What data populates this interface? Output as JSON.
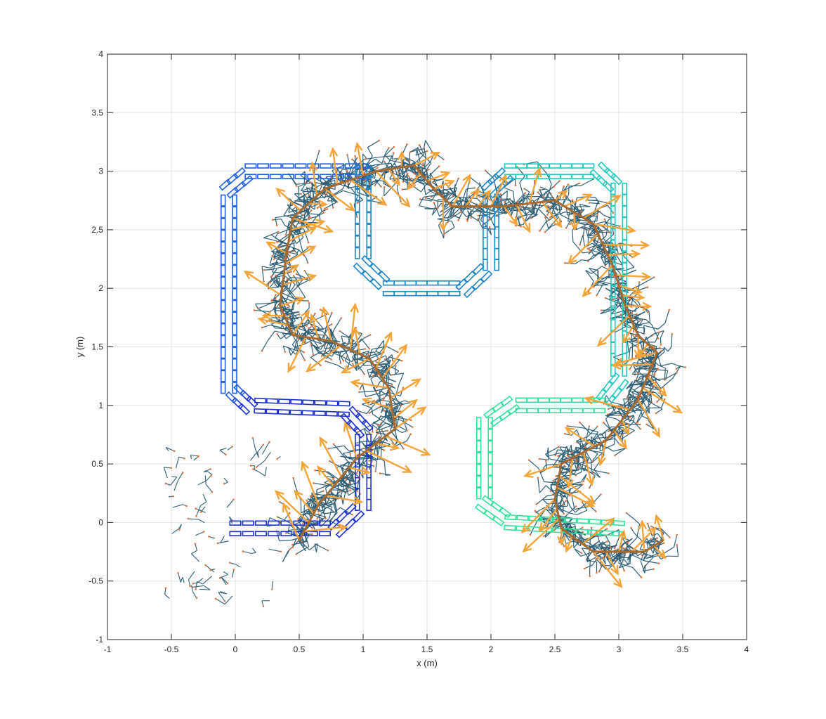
{
  "chart_data": {
    "type": "line",
    "xlabel": "x (m)",
    "ylabel": "y (m)",
    "xlim": [
      -1,
      4
    ],
    "ylim": [
      -1,
      4
    ],
    "xticks": [
      "-1",
      "-0.5",
      "0",
      "0.5",
      "1",
      "1.5",
      "2",
      "2.5",
      "3",
      "3.5",
      "4"
    ],
    "yticks": [
      "-1",
      "-0.5",
      "0",
      "0.5",
      "1",
      "1.5",
      "2",
      "2.5",
      "3",
      "3.5",
      "4"
    ],
    "grid": true,
    "colors": {
      "tree": "#2e6075",
      "tree_nodes": "#e8743b",
      "path": "#a8692e",
      "arrows": "#f5a43a",
      "track_seg1": "#1b2fd4",
      "track_seg2": "#1f5fe0",
      "track_seg3": "#1a86c8",
      "track_seg4": "#22c9c0",
      "track_seg5": "#2fe39a"
    },
    "series": [
      {
        "points": [
          [
            0,
            -0.05
          ],
          [
            0.8,
            -0.05
          ],
          [
            1.0,
            0.15
          ],
          [
            1.0,
            0.8
          ],
          [
            0.85,
            0.97
          ],
          [
            0.1,
            1.0
          ],
          [
            -0.05,
            1.15
          ],
          [
            -0.05,
            2.85
          ],
          [
            0.12,
            3.0
          ],
          [
            1.0,
            3.0
          ]
        ]
      },
      {
        "points": [
          [
            1.0,
            3.0
          ],
          [
            1.0,
            2.2
          ],
          [
            1.2,
            2.0
          ],
          [
            1.8,
            2.0
          ],
          [
            2.0,
            2.2
          ],
          [
            2.0,
            2.85
          ],
          [
            2.15,
            3.0
          ],
          [
            2.85,
            3.0
          ],
          [
            3.0,
            2.85
          ],
          [
            3.0,
            1.2
          ],
          [
            2.85,
            1.0
          ],
          [
            2.15,
            1.0
          ],
          [
            1.95,
            0.85
          ],
          [
            1.95,
            0.15
          ],
          [
            2.15,
            0.0
          ],
          [
            3.0,
            -0.05
          ]
        ]
      },
      {
        "points": [
          [
            0.5,
            -0.15
          ],
          [
            0.65,
            0.15
          ],
          [
            0.95,
            0.55
          ],
          [
            1.25,
            0.8
          ],
          [
            1.2,
            1.15
          ],
          [
            1.05,
            1.4
          ],
          [
            0.75,
            1.55
          ],
          [
            0.45,
            1.6
          ],
          [
            0.35,
            1.85
          ],
          [
            0.4,
            2.3
          ],
          [
            0.45,
            2.6
          ],
          [
            0.7,
            2.85
          ],
          [
            1.1,
            3.0
          ],
          [
            1.4,
            3.05
          ],
          [
            1.55,
            2.85
          ],
          [
            1.7,
            2.7
          ],
          [
            2.1,
            2.7
          ],
          [
            2.5,
            2.75
          ],
          [
            2.8,
            2.55
          ],
          [
            2.95,
            2.2
          ],
          [
            3.05,
            1.85
          ],
          [
            3.15,
            1.6
          ],
          [
            3.3,
            1.45
          ],
          [
            3.15,
            1.05
          ],
          [
            2.9,
            0.7
          ],
          [
            2.55,
            0.5
          ],
          [
            2.5,
            0.2
          ],
          [
            2.55,
            -0.05
          ],
          [
            2.8,
            -0.25
          ],
          [
            3.2,
            -0.25
          ],
          [
            3.35,
            -0.15
          ]
        ]
      }
    ]
  }
}
